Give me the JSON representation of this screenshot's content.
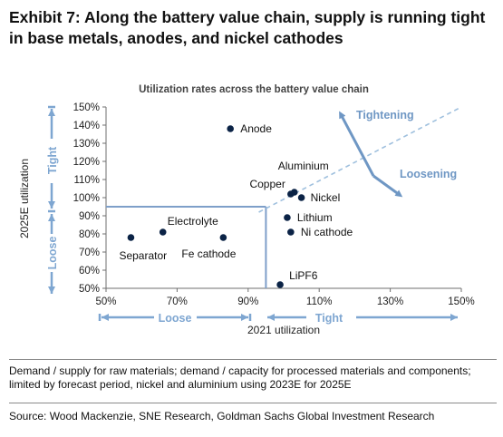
{
  "exhibit": {
    "title": "Exhibit 7: Along the battery value chain, supply is running tight in base metals, anodes, and nickel cathodes"
  },
  "chart_data": {
    "type": "scatter",
    "title": "Utilization rates across the battery value chain",
    "xlabel": "2021 utilization",
    "ylabel": "2025E utilization",
    "xlim": [
      50,
      150
    ],
    "ylim": [
      50,
      150
    ],
    "x_ticks": [
      50,
      70,
      90,
      110,
      130,
      150
    ],
    "x_tick_labels": [
      "50%",
      "70%",
      "90%",
      "110%",
      "130%",
      "150%"
    ],
    "y_ticks": [
      50,
      60,
      70,
      80,
      90,
      100,
      110,
      120,
      130,
      140,
      150
    ],
    "y_tick_labels": [
      "50%",
      "60%",
      "70%",
      "80%",
      "90%",
      "100%",
      "110%",
      "120%",
      "130%",
      "140%",
      "150%"
    ],
    "points": [
      {
        "label": "Anode",
        "x": 85,
        "y": 138
      },
      {
        "label": "Aluminium",
        "x": 103,
        "y": 103
      },
      {
        "label": "Copper",
        "x": 102,
        "y": 102
      },
      {
        "label": "Nickel",
        "x": 105,
        "y": 100
      },
      {
        "label": "Lithium",
        "x": 101,
        "y": 89
      },
      {
        "label": "Ni cathode",
        "x": 102,
        "y": 81
      },
      {
        "label": "LiPF6",
        "x": 99,
        "y": 52
      },
      {
        "label": "Electrolyte",
        "x": 66,
        "y": 81
      },
      {
        "label": "Separator",
        "x": 57,
        "y": 78
      },
      {
        "label": "Fe cathode",
        "x": 83,
        "y": 78
      }
    ],
    "reference_lines": {
      "x": 95,
      "y": 95
    },
    "diagonal_label_up": "Tightening",
    "diagonal_label_down": "Loosening",
    "x_band_labels": {
      "low": "Loose",
      "high": "Tight"
    },
    "y_band_labels": {
      "low": "Loose",
      "high": "Tight"
    },
    "colors": {
      "marker": "#0b2346",
      "accent": "#6f97c4",
      "reference": "#7e9fc9",
      "axis": "#6f6f6f"
    }
  },
  "footnote": "Demand / supply for raw materials; demand / capacity for processed materials and components; limited by forecast period, nickel and aluminium using 2023E for 2025E",
  "source": "Source: Wood Mackenzie, SNE Research, Goldman Sachs Global Investment Research"
}
